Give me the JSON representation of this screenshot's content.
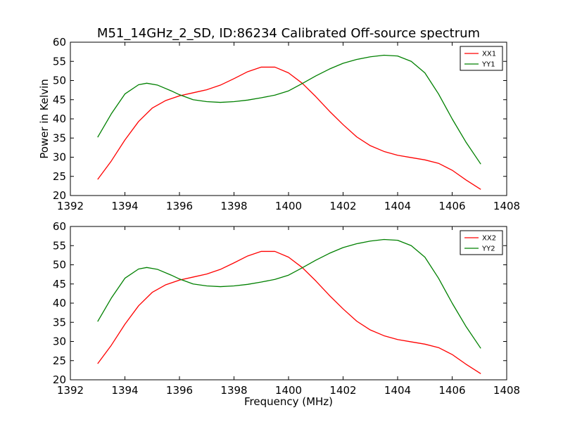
{
  "page": {
    "title": "M51_14GHz_2_SD, ID:86234 Calibrated Off-source spectrum"
  },
  "colors": {
    "XX": "#ff0000",
    "YY": "#008000"
  },
  "chart_data": [
    {
      "type": "line",
      "title": "M51_14GHz_2_SD, ID:86234 Calibrated Off-source spectrum",
      "xlabel": "",
      "ylabel": "Power in Kelvin",
      "xlim": [
        1392,
        1408
      ],
      "ylim": [
        20,
        60
      ],
      "xticks": [
        1392,
        1394,
        1396,
        1398,
        1400,
        1402,
        1404,
        1406,
        1408
      ],
      "yticks": [
        20,
        25,
        30,
        35,
        40,
        45,
        50,
        55,
        60
      ],
      "legend": "top-right",
      "series": [
        {
          "name": "XX1",
          "color": "#ff0000",
          "x": [
            1393.0,
            1393.5,
            1394.0,
            1394.5,
            1395.0,
            1395.5,
            1396.0,
            1396.5,
            1397.0,
            1397.5,
            1398.0,
            1398.5,
            1399.0,
            1399.5,
            1400.0,
            1400.5,
            1401.0,
            1401.5,
            1402.0,
            1402.5,
            1403.0,
            1403.5,
            1404.0,
            1404.5,
            1405.0,
            1405.5,
            1406.0,
            1406.5,
            1407.05
          ],
          "y": [
            24.2,
            29.0,
            34.5,
            39.3,
            42.8,
            44.8,
            46.0,
            46.8,
            47.6,
            48.8,
            50.5,
            52.3,
            53.5,
            53.5,
            52.0,
            49.3,
            45.8,
            42.0,
            38.5,
            35.3,
            33.0,
            31.5,
            30.5,
            29.9,
            29.3,
            28.4,
            26.6,
            24.1,
            21.6
          ]
        },
        {
          "name": "YY1",
          "color": "#008000",
          "x": [
            1393.0,
            1393.5,
            1394.0,
            1394.5,
            1394.8,
            1395.2,
            1395.7,
            1396.0,
            1396.5,
            1397.0,
            1397.5,
            1398.0,
            1398.5,
            1399.0,
            1399.5,
            1400.0,
            1400.5,
            1401.0,
            1401.5,
            1402.0,
            1402.5,
            1403.0,
            1403.5,
            1404.0,
            1404.5,
            1405.0,
            1405.5,
            1406.0,
            1406.5,
            1407.05
          ],
          "y": [
            35.2,
            41.3,
            46.5,
            48.9,
            49.3,
            48.8,
            47.3,
            46.3,
            45.0,
            44.5,
            44.3,
            44.5,
            44.9,
            45.5,
            46.2,
            47.3,
            49.2,
            51.2,
            53.0,
            54.5,
            55.5,
            56.2,
            56.6,
            56.4,
            55.0,
            52.0,
            46.5,
            40.0,
            34.0,
            28.2
          ]
        }
      ]
    },
    {
      "type": "line",
      "title": "",
      "xlabel": "Frequency (MHz)",
      "ylabel": "",
      "xlim": [
        1392,
        1408
      ],
      "ylim": [
        20,
        60
      ],
      "xticks": [
        1392,
        1394,
        1396,
        1398,
        1400,
        1402,
        1404,
        1406,
        1408
      ],
      "yticks": [
        20,
        25,
        30,
        35,
        40,
        45,
        50,
        55,
        60
      ],
      "legend": "top-right",
      "series": [
        {
          "name": "XX2",
          "color": "#ff0000",
          "x": [
            1393.0,
            1393.5,
            1394.0,
            1394.5,
            1395.0,
            1395.5,
            1396.0,
            1396.5,
            1397.0,
            1397.5,
            1398.0,
            1398.5,
            1399.0,
            1399.5,
            1400.0,
            1400.5,
            1401.0,
            1401.5,
            1402.0,
            1402.5,
            1403.0,
            1403.5,
            1404.0,
            1404.5,
            1405.0,
            1405.5,
            1406.0,
            1406.5,
            1407.05
          ],
          "y": [
            24.2,
            29.0,
            34.5,
            39.3,
            42.8,
            44.8,
            46.0,
            46.8,
            47.6,
            48.8,
            50.5,
            52.3,
            53.5,
            53.5,
            52.0,
            49.3,
            45.8,
            42.0,
            38.5,
            35.3,
            33.0,
            31.5,
            30.5,
            29.9,
            29.3,
            28.4,
            26.6,
            24.1,
            21.6
          ]
        },
        {
          "name": "YY2",
          "color": "#008000",
          "x": [
            1393.0,
            1393.5,
            1394.0,
            1394.5,
            1394.8,
            1395.2,
            1395.7,
            1396.0,
            1396.5,
            1397.0,
            1397.5,
            1398.0,
            1398.5,
            1399.0,
            1399.5,
            1400.0,
            1400.5,
            1401.0,
            1401.5,
            1402.0,
            1402.5,
            1403.0,
            1403.5,
            1404.0,
            1404.5,
            1405.0,
            1405.5,
            1406.0,
            1406.5,
            1407.05
          ],
          "y": [
            35.2,
            41.3,
            46.5,
            48.9,
            49.3,
            48.8,
            47.3,
            46.3,
            45.0,
            44.5,
            44.3,
            44.5,
            44.9,
            45.5,
            46.2,
            47.3,
            49.2,
            51.2,
            53.0,
            54.5,
            55.5,
            56.2,
            56.6,
            56.4,
            55.0,
            52.0,
            46.5,
            40.0,
            34.0,
            28.2
          ]
        }
      ]
    }
  ]
}
